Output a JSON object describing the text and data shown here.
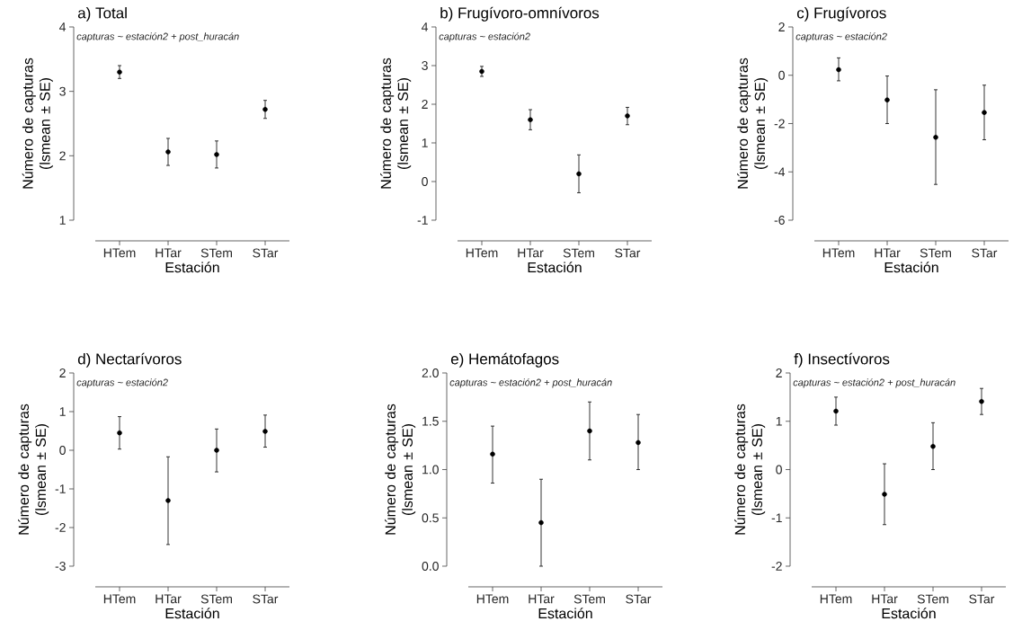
{
  "chart_data": [
    {
      "type": "scatter",
      "title": "a) Total",
      "subtitle": "capturas ~ estación2 + post_huracán",
      "xlabel": "Estación",
      "ylabel": "Número de capturas (lsmean ± SE)",
      "categories": [
        "HTem",
        "HTar",
        "STem",
        "STar"
      ],
      "values": [
        3.3,
        2.06,
        2.02,
        2.72
      ],
      "errors": [
        [
          3.2,
          3.4
        ],
        [
          1.85,
          2.27
        ],
        [
          1.81,
          2.23
        ],
        [
          2.58,
          2.86
        ]
      ],
      "color": "#000000",
      "marker": "circle",
      "ylim": [
        1,
        4
      ],
      "yticks": [
        1,
        2,
        3,
        4
      ]
    },
    {
      "type": "scatter",
      "title": "b) Frugívoro-omnívoros",
      "subtitle": "capturas ~   estación2",
      "xlabel": "Estación",
      "ylabel": "Número de capturas (lsmean ± SE)",
      "categories": [
        "HTem",
        "HTar",
        "STem",
        "STar"
      ],
      "values": [
        2.85,
        1.6,
        0.2,
        1.7
      ],
      "errors": [
        [
          2.72,
          2.98
        ],
        [
          1.34,
          1.86
        ],
        [
          -0.29,
          0.69
        ],
        [
          1.47,
          1.92
        ]
      ],
      "color": "#000000",
      "marker": "circle",
      "ylim": [
        -1,
        4
      ],
      "yticks": [
        -1,
        0,
        1,
        2,
        3,
        4
      ]
    },
    {
      "type": "scatter",
      "title": "c) Frugívoros",
      "subtitle": "capturas ~   estación2",
      "xlabel": "Estación",
      "ylabel": "Número de capturas (lsmean ± SE)",
      "categories": [
        "HTem",
        "HTar",
        "STem",
        "STar"
      ],
      "values": [
        0.23,
        -1.02,
        -2.57,
        -1.54
      ],
      "errors": [
        [
          -0.23,
          0.72
        ],
        [
          -2.0,
          -0.03
        ],
        [
          -4.52,
          -0.6
        ],
        [
          -2.67,
          -0.41
        ]
      ],
      "color": "#000000",
      "marker": "circle",
      "ylim": [
        -6,
        2
      ],
      "yticks": [
        -6,
        -4,
        -2,
        0,
        2
      ]
    },
    {
      "type": "scatter",
      "title": "d) Nectarívoros",
      "subtitle": "capturas ~   estación2",
      "xlabel": "Estación",
      "ylabel": "Número de capturas (lsmean ± SE)",
      "categories": [
        "HTem",
        "HTar",
        "STem",
        "STar"
      ],
      "values": [
        0.45,
        -1.3,
        0.0,
        0.49
      ],
      "errors": [
        [
          0.03,
          0.87
        ],
        [
          -2.44,
          -0.17
        ],
        [
          -0.56,
          0.55
        ],
        [
          0.08,
          0.91
        ]
      ],
      "color": "#000000",
      "marker": "circle",
      "ylim": [
        -3,
        2
      ],
      "yticks": [
        -3,
        -2,
        -1,
        0,
        1,
        2
      ]
    },
    {
      "type": "scatter",
      "title": "e) Hemátofagos",
      "subtitle": "capturas ~ estación2 + post_huracán",
      "xlabel": "Estación",
      "ylabel": "Número de capturas (lsmean ± SE)",
      "categories": [
        "HTem",
        "HTar",
        "STem",
        "STar"
      ],
      "values": [
        1.16,
        0.45,
        1.4,
        1.28
      ],
      "errors": [
        [
          0.86,
          1.45
        ],
        [
          0.0,
          0.9
        ],
        [
          1.1,
          1.7
        ],
        [
          1.0,
          1.57
        ]
      ],
      "color": "#000000",
      "marker": "circle",
      "ylim": [
        0,
        2
      ],
      "yticks": [
        {
          "value": 0,
          "label": "0.0"
        },
        {
          "value": 0.5,
          "label": "0.5"
        },
        {
          "value": 1,
          "label": "1.0"
        },
        {
          "value": 1.5,
          "label": "1.5"
        },
        {
          "value": 2,
          "label": "2.0"
        }
      ]
    },
    {
      "type": "scatter",
      "title": "f) Insectívoros",
      "subtitle": "capturas ~ estación2 + post_huracán",
      "xlabel": "Estación",
      "ylabel": "Número de capturas (lsmean ± SE)",
      "categories": [
        "HTem",
        "HTar",
        "STem",
        "STar"
      ],
      "values": [
        1.21,
        -0.51,
        0.48,
        1.41
      ],
      "errors": [
        [
          0.92,
          1.5
        ],
        [
          -1.14,
          0.12
        ],
        [
          0.0,
          0.97
        ],
        [
          1.14,
          1.68
        ]
      ],
      "color": "#000000",
      "marker": "circle",
      "ylim": [
        -2,
        2
      ],
      "yticks": [
        -2,
        -1,
        0,
        1,
        2
      ]
    }
  ]
}
